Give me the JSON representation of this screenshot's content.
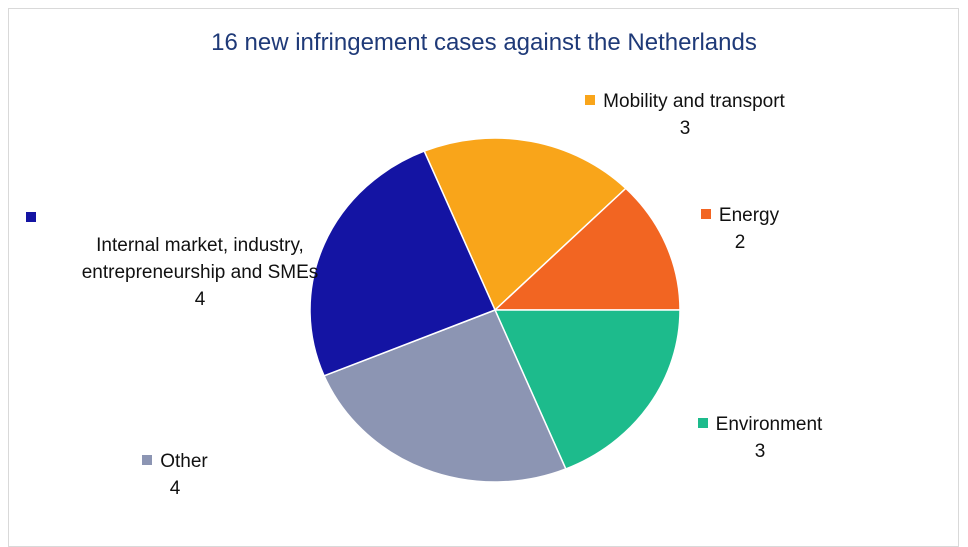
{
  "chart_data": {
    "type": "pie",
    "title": "16 new infringement cases against the Netherlands",
    "categories": [
      "Mobility and transport",
      "Energy",
      "Environment",
      "Other",
      "Internal market, industry, entrepreneurship and SMEs"
    ],
    "values": [
      3,
      2,
      3,
      4,
      4
    ],
    "colors": [
      "#f9a51a",
      "#f26522",
      "#1dbb8c",
      "#8c95b3",
      "#1414a3"
    ],
    "start_angle": -22.5
  }
}
